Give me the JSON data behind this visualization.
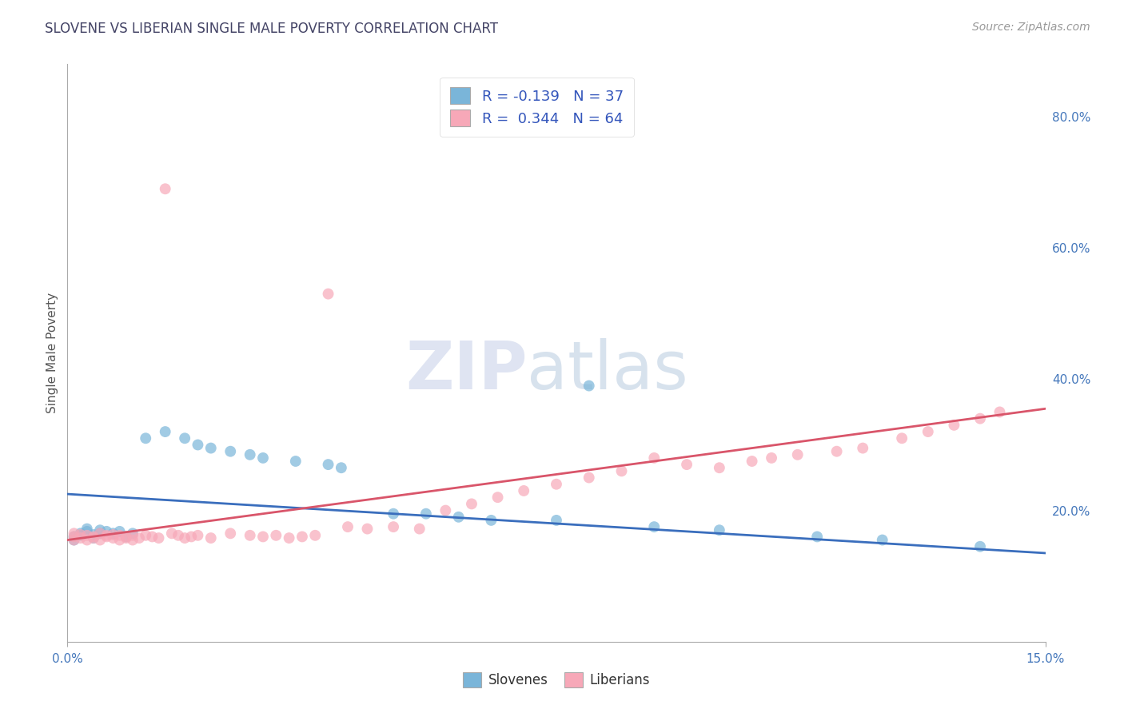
{
  "title": "SLOVENE VS LIBERIAN SINGLE MALE POVERTY CORRELATION CHART",
  "source_text": "Source: ZipAtlas.com",
  "ylabel": "Single Male Poverty",
  "xlim": [
    0.0,
    0.15
  ],
  "ylim": [
    0.0,
    0.88
  ],
  "xtick_vals": [
    0.0,
    0.15
  ],
  "xtick_labels": [
    "0.0%",
    "15.0%"
  ],
  "yticks_right": [
    0.2,
    0.4,
    0.6,
    0.8
  ],
  "ytick_labels_right": [
    "20.0%",
    "40.0%",
    "60.0%",
    "80.0%"
  ],
  "slovene_color": "#7ab5d9",
  "liberian_color": "#f7a8b8",
  "slovene_line_color": "#3a6ebd",
  "liberian_line_color": "#d9556a",
  "background_color": "#ffffff",
  "grid_color": "#c8c8d8",
  "title_color": "#444466",
  "source_color": "#999999",
  "legend_r1": "R = -0.139   N = 37",
  "legend_r2": "R =  0.344   N = 64",
  "legend_label1": "Slovenes",
  "legend_label2": "Liberians",
  "slovene_x": [
    0.001,
    0.001,
    0.002,
    0.002,
    0.003,
    0.003,
    0.004,
    0.004,
    0.005,
    0.005,
    0.006,
    0.007,
    0.008,
    0.009,
    0.01,
    0.012,
    0.015,
    0.018,
    0.02,
    0.022,
    0.025,
    0.028,
    0.03,
    0.035,
    0.04,
    0.042,
    0.05,
    0.055,
    0.06,
    0.065,
    0.075,
    0.08,
    0.09,
    0.1,
    0.115,
    0.125,
    0.14
  ],
  "slovene_y": [
    0.155,
    0.16,
    0.162,
    0.165,
    0.168,
    0.172,
    0.158,
    0.163,
    0.165,
    0.17,
    0.168,
    0.165,
    0.168,
    0.16,
    0.165,
    0.31,
    0.32,
    0.31,
    0.3,
    0.295,
    0.29,
    0.285,
    0.28,
    0.275,
    0.27,
    0.265,
    0.195,
    0.195,
    0.19,
    0.185,
    0.185,
    0.39,
    0.175,
    0.17,
    0.16,
    0.155,
    0.145
  ],
  "liberian_x": [
    0.001,
    0.001,
    0.001,
    0.002,
    0.002,
    0.003,
    0.003,
    0.004,
    0.004,
    0.005,
    0.005,
    0.006,
    0.006,
    0.007,
    0.007,
    0.008,
    0.008,
    0.009,
    0.009,
    0.01,
    0.01,
    0.011,
    0.012,
    0.013,
    0.014,
    0.015,
    0.016,
    0.017,
    0.018,
    0.019,
    0.02,
    0.022,
    0.025,
    0.028,
    0.03,
    0.032,
    0.034,
    0.036,
    0.038,
    0.04,
    0.043,
    0.046,
    0.05,
    0.054,
    0.058,
    0.062,
    0.066,
    0.07,
    0.075,
    0.08,
    0.085,
    0.09,
    0.095,
    0.1,
    0.105,
    0.108,
    0.112,
    0.118,
    0.122,
    0.128,
    0.132,
    0.136,
    0.14,
    0.143
  ],
  "liberian_y": [
    0.155,
    0.16,
    0.165,
    0.158,
    0.163,
    0.155,
    0.162,
    0.158,
    0.16,
    0.155,
    0.165,
    0.16,
    0.162,
    0.158,
    0.163,
    0.155,
    0.162,
    0.158,
    0.16,
    0.155,
    0.162,
    0.158,
    0.162,
    0.16,
    0.158,
    0.69,
    0.165,
    0.162,
    0.158,
    0.16,
    0.162,
    0.158,
    0.165,
    0.162,
    0.16,
    0.162,
    0.158,
    0.16,
    0.162,
    0.53,
    0.175,
    0.172,
    0.175,
    0.172,
    0.2,
    0.21,
    0.22,
    0.23,
    0.24,
    0.25,
    0.26,
    0.28,
    0.27,
    0.265,
    0.275,
    0.28,
    0.285,
    0.29,
    0.295,
    0.31,
    0.32,
    0.33,
    0.34,
    0.35
  ],
  "watermark_zip": "ZIP",
  "watermark_atlas": "atlas",
  "marker_size": 100,
  "trend_linewidth": 2.0
}
